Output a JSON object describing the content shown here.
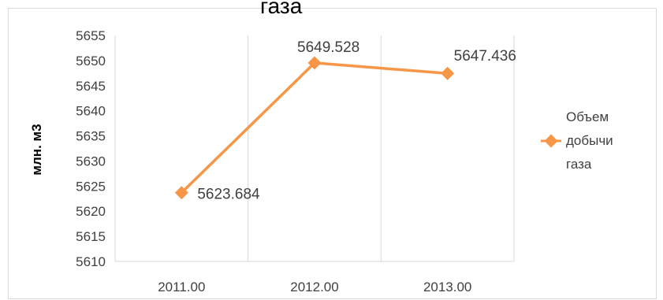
{
  "chart_data": {
    "type": "line",
    "title": "газа",
    "ylabel": "млн. м3",
    "xlabel": "",
    "categories": [
      "2011.00",
      "2012.00",
      "2013.00"
    ],
    "series": [
      {
        "name": "Объем добычи газа",
        "name_lines": [
          "Объем",
          "добычи",
          "газа"
        ],
        "values": [
          5623.684,
          5649.528,
          5647.436
        ],
        "labels": [
          "5623.684",
          "5649.528",
          "5647.436"
        ],
        "color": "#F79646"
      }
    ],
    "ylim": [
      5610,
      5655
    ],
    "yticks": [
      "5655",
      "5650",
      "5645",
      "5640",
      "5635",
      "5630",
      "5625",
      "5620",
      "5615",
      "5610"
    ],
    "grid": "vertical",
    "legend_position": "right"
  }
}
